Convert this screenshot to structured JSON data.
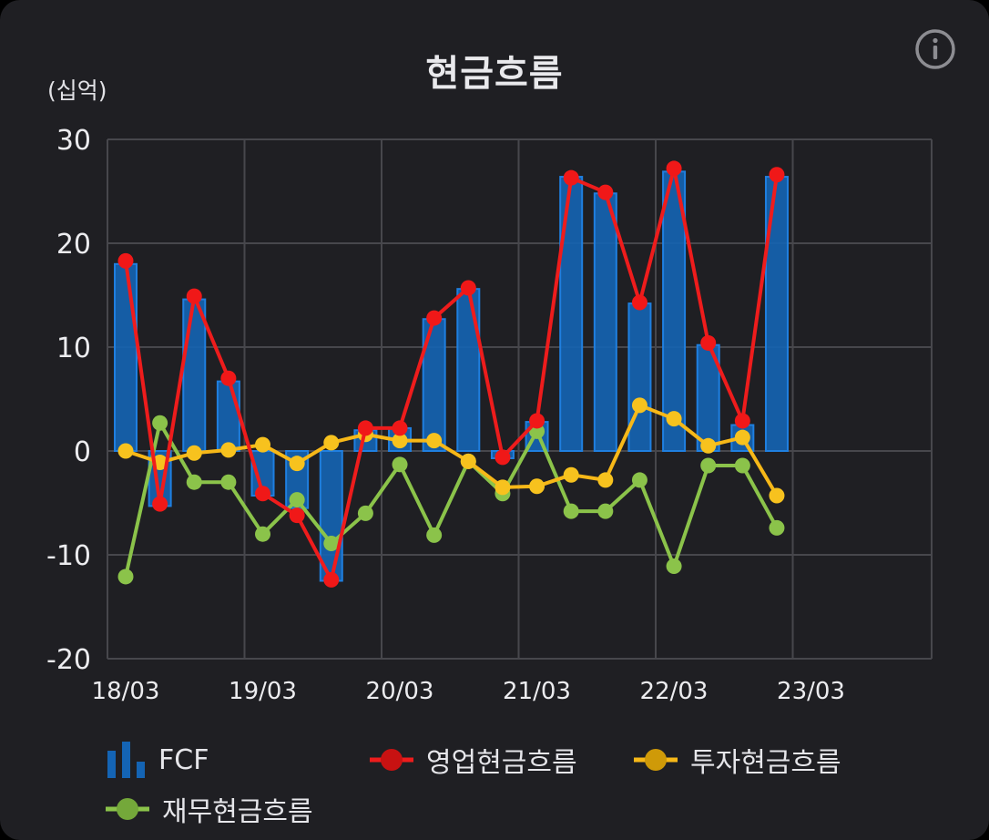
{
  "header": {
    "title": "현금흐름",
    "unit": "(십억)"
  },
  "colors": {
    "background": "#1f1f23",
    "grid": "#47474c",
    "fcf": "#1464b4",
    "fcf_edge": "#1f7fe0",
    "operating": "#ee1c1c",
    "investing": "#f7b818",
    "financing": "#8bc34a"
  },
  "legend": {
    "fcf": "FCF",
    "operating": "영업현금흐름",
    "investing": "투자현금흐름",
    "financing": "재무현금흐름"
  },
  "chart_data": {
    "type": "bar",
    "title": "현금흐름",
    "ylabel": "(십억)",
    "ylim": [
      -20,
      30
    ],
    "yticks": [
      30,
      20,
      10,
      0,
      -10,
      -20
    ],
    "xtick_labels": [
      "18/03",
      "19/03",
      "20/03",
      "21/03",
      "22/03",
      "23/03"
    ],
    "categories": [
      "18/03",
      "18/06",
      "18/09",
      "18/12",
      "19/03",
      "19/06",
      "19/09",
      "19/12",
      "20/03",
      "20/06",
      "20/09",
      "20/12",
      "21/03",
      "21/06",
      "21/09",
      "21/12",
      "22/03",
      "22/06",
      "22/09",
      "22/12"
    ],
    "grid": true,
    "legend_position": "bottom",
    "series": [
      {
        "name": "FCF",
        "kind": "bar",
        "values": [
          18.0,
          -5.3,
          14.6,
          6.7,
          -4.3,
          -5.5,
          -12.5,
          2.0,
          2.2,
          12.7,
          15.6,
          -0.7,
          2.8,
          26.4,
          24.8,
          14.2,
          26.9,
          10.2,
          2.5,
          26.4
        ]
      },
      {
        "name": "영업현금흐름",
        "kind": "line",
        "values": [
          18.3,
          -5.1,
          14.9,
          7.0,
          -4.1,
          -6.2,
          -12.4,
          2.2,
          2.2,
          12.8,
          15.7,
          -0.6,
          2.9,
          26.3,
          24.9,
          14.3,
          27.2,
          10.4,
          2.9,
          26.6
        ]
      },
      {
        "name": "투자현금흐름",
        "kind": "line",
        "values": [
          0.0,
          -1.1,
          -0.2,
          0.1,
          0.6,
          -1.2,
          0.8,
          1.6,
          1.0,
          1.0,
          -1.0,
          -3.5,
          -3.4,
          -2.3,
          -2.8,
          4.4,
          3.1,
          0.5,
          1.3,
          -4.3
        ]
      },
      {
        "name": "재무현금흐름",
        "kind": "line",
        "values": [
          -12.1,
          2.7,
          -3.0,
          -3.0,
          -8.0,
          -4.7,
          -8.9,
          -6.0,
          -1.3,
          -8.1,
          -1.0,
          -4.1,
          1.9,
          -5.8,
          -5.8,
          -2.8,
          -11.1,
          -1.4,
          -1.4,
          -7.4
        ]
      }
    ]
  }
}
